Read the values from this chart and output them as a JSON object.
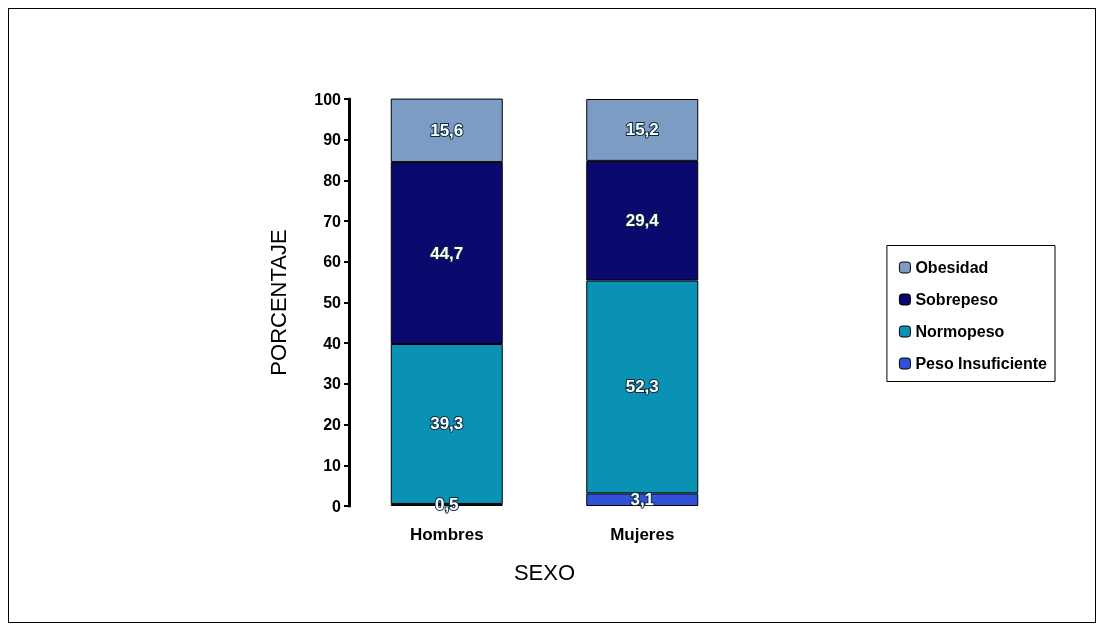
{
  "chart_data": {
    "type": "bar",
    "stacked": true,
    "xlabel": "SEXO",
    "ylabel": "PORCENTAJE",
    "categories": [
      "Hombres",
      "Mujeres"
    ],
    "series": [
      {
        "name": "Peso Insuficiente",
        "color": "#2f52d6",
        "values": [
          0.5,
          3.1
        ],
        "value_labels": [
          "0,5",
          "3,1"
        ]
      },
      {
        "name": "Normopeso",
        "color": "#0a92b4",
        "values": [
          39.3,
          52.3
        ],
        "value_labels": [
          "39,3",
          "52,3"
        ]
      },
      {
        "name": "Sobrepeso",
        "color": "#0a0a6e",
        "values": [
          44.7,
          29.4
        ],
        "value_labels": [
          "44,7",
          "29,4"
        ]
      },
      {
        "name": "Obesidad",
        "color": "#7d9cc4",
        "values": [
          15.6,
          15.2
        ],
        "value_labels": [
          "15,6",
          "15,2"
        ]
      }
    ],
    "ylim": [
      0,
      100
    ],
    "yticks": [
      0,
      10,
      20,
      30,
      40,
      50,
      60,
      70,
      80,
      90,
      100
    ],
    "grid": false,
    "legend": "right"
  }
}
